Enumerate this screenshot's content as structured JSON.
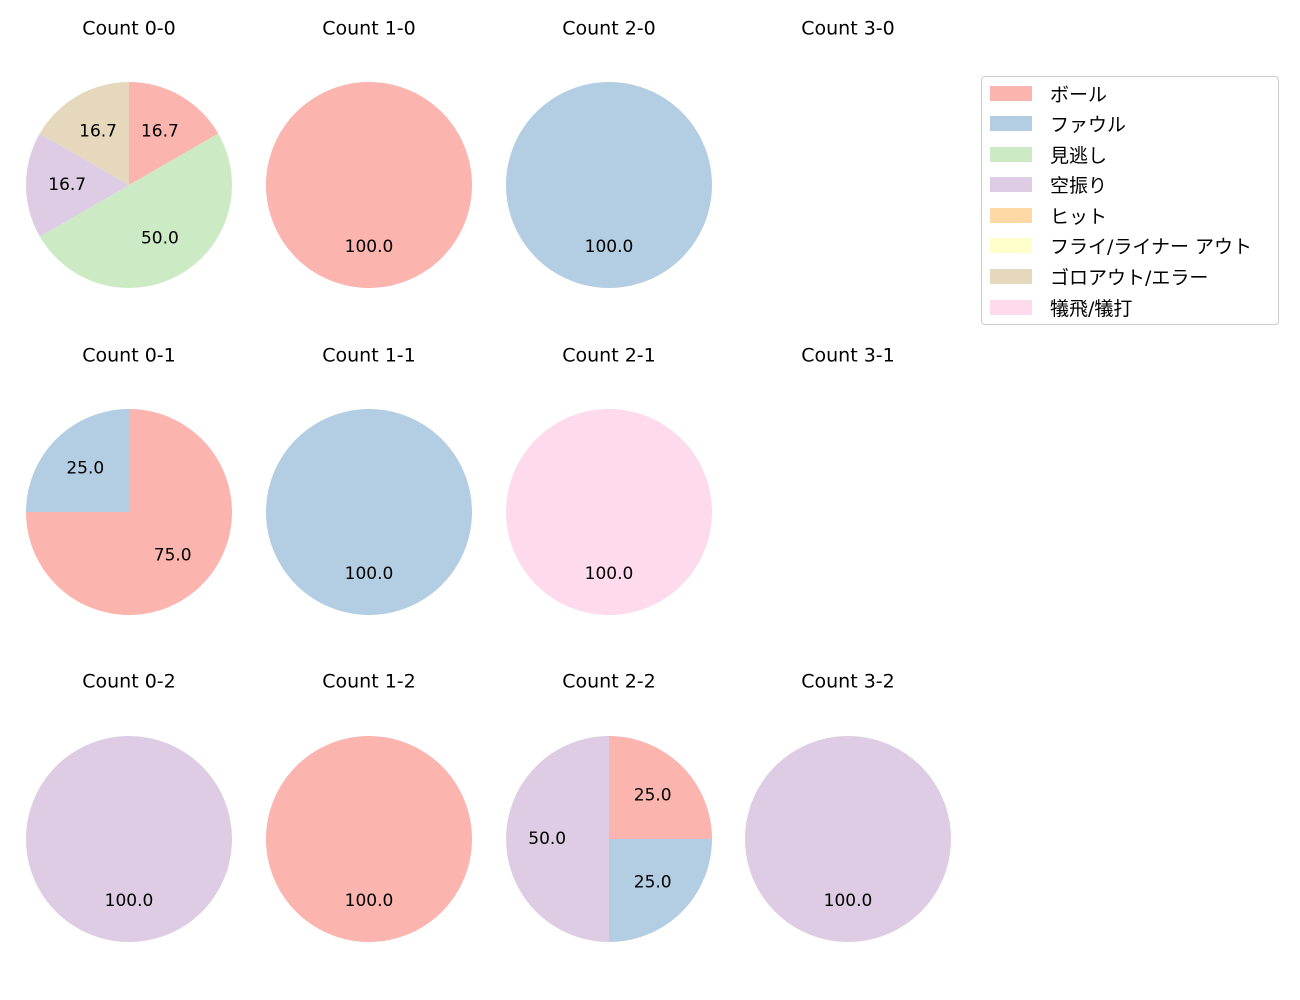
{
  "chart_data": {
    "type": "pie",
    "layout": {
      "rows": 3,
      "cols": 4,
      "start_angle": 90,
      "direction": "clockwise",
      "legend_position": "upper right"
    },
    "legend": [
      {
        "label": "ボール",
        "color": "#fbb4ae"
      },
      {
        "label": "ファウル",
        "color": "#b3cde3"
      },
      {
        "label": "見逃し",
        "color": "#ccebc5"
      },
      {
        "label": "空振り",
        "color": "#decbe4"
      },
      {
        "label": "ヒット",
        "color": "#fed9a6"
      },
      {
        "label": "フライ/ライナー アウト",
        "color": "#ffffcc"
      },
      {
        "label": "ゴロアウト/エラー",
        "color": "#e5d8bd"
      },
      {
        "label": "犠飛/犠打",
        "color": "#fddaec"
      }
    ],
    "charts": [
      {
        "title": "Count 0-0",
        "row": 0,
        "col": 0,
        "slices": [
          {
            "category": "ボール",
            "value": 16.7
          },
          {
            "category": "見逃し",
            "value": 50.0
          },
          {
            "category": "空振り",
            "value": 16.7
          },
          {
            "category": "ゴロアウト/エラー",
            "value": 16.7
          }
        ]
      },
      {
        "title": "Count 1-0",
        "row": 0,
        "col": 1,
        "slices": [
          {
            "category": "ボール",
            "value": 100.0
          }
        ]
      },
      {
        "title": "Count 2-0",
        "row": 0,
        "col": 2,
        "slices": [
          {
            "category": "ファウル",
            "value": 100.0
          }
        ]
      },
      {
        "title": "Count 3-0",
        "row": 0,
        "col": 3,
        "slices": []
      },
      {
        "title": "Count 0-1",
        "row": 1,
        "col": 0,
        "slices": [
          {
            "category": "ボール",
            "value": 75.0
          },
          {
            "category": "ファウル",
            "value": 25.0
          }
        ]
      },
      {
        "title": "Count 1-1",
        "row": 1,
        "col": 1,
        "slices": [
          {
            "category": "ファウル",
            "value": 100.0
          }
        ]
      },
      {
        "title": "Count 2-1",
        "row": 1,
        "col": 2,
        "slices": [
          {
            "category": "犠飛/犠打",
            "value": 100.0
          }
        ]
      },
      {
        "title": "Count 3-1",
        "row": 1,
        "col": 3,
        "slices": []
      },
      {
        "title": "Count 0-2",
        "row": 2,
        "col": 0,
        "slices": [
          {
            "category": "空振り",
            "value": 100.0
          }
        ]
      },
      {
        "title": "Count 1-2",
        "row": 2,
        "col": 1,
        "slices": [
          {
            "category": "ボール",
            "value": 100.0
          }
        ]
      },
      {
        "title": "Count 2-2",
        "row": 2,
        "col": 2,
        "slices": [
          {
            "category": "ボール",
            "value": 25.0
          },
          {
            "category": "ファウル",
            "value": 25.0
          },
          {
            "category": "空振り",
            "value": 50.0
          }
        ]
      },
      {
        "title": "Count 3-2",
        "row": 2,
        "col": 3,
        "slices": [
          {
            "category": "空振り",
            "value": 100.0
          }
        ]
      }
    ]
  }
}
